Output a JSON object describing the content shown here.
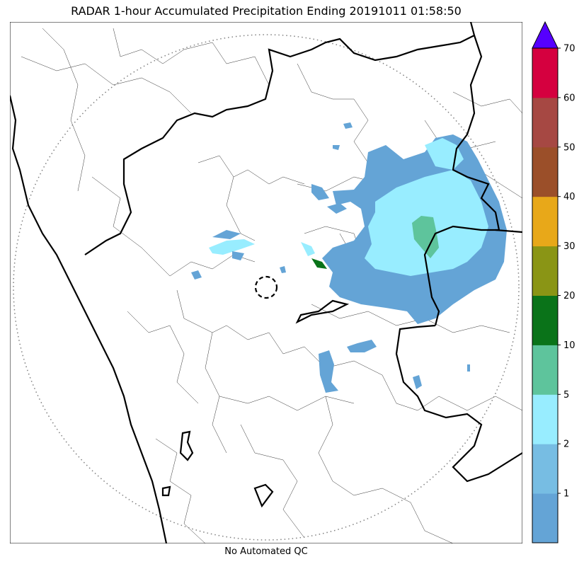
{
  "title": "RADAR 1-hour Accumulated Precipitation Ending 20191011 01:58:50",
  "footer": "No Automated QC",
  "colorbar": {
    "ticks": [
      "1",
      "2",
      "5",
      "10",
      "20",
      "30",
      "40",
      "50",
      "60",
      "70"
    ],
    "bins": [
      {
        "color": "#64a4d6"
      },
      {
        "color": "#77bde3"
      },
      {
        "color": "#98edff"
      },
      {
        "color": "#5ec49c"
      },
      {
        "color": "#0a7319"
      },
      {
        "color": "#8a9515"
      },
      {
        "color": "#e8a819"
      },
      {
        "color": "#9b4f29"
      },
      {
        "color": "#a64843"
      },
      {
        "color": "#d5003f"
      }
    ],
    "overflow_color": "#5600ff"
  },
  "map": {
    "range_ring": "dotted",
    "radar_marker": "dashed-circle",
    "precip_colors": {
      "light": "#64a4d6",
      "moderate": "#98edff",
      "heavy": "#5ec49c",
      "very_heavy": "#0a7319"
    }
  }
}
